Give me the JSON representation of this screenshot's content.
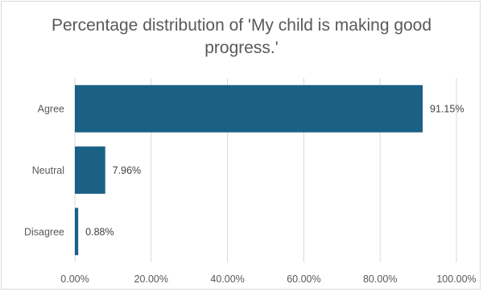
{
  "chart_data": {
    "type": "bar",
    "orientation": "horizontal",
    "title": "Percentage distribution of 'My child is making good progress.'",
    "categories": [
      "Agree",
      "Neutral",
      "Disagree"
    ],
    "values": [
      91.15,
      7.96,
      0.88
    ],
    "data_labels": [
      "91.15%",
      "7.96%",
      "0.88%"
    ],
    "xlim": [
      0,
      100
    ],
    "x_ticks": [
      0,
      20,
      40,
      60,
      80,
      100
    ],
    "x_tick_labels": [
      "0.00%",
      "20.00%",
      "40.00%",
      "60.00%",
      "80.00%",
      "100.00%"
    ],
    "xlabel": "",
    "ylabel": "",
    "grid": true,
    "legend": "none",
    "bar_color": "#1a6185",
    "grid_color": "#d9d9d9"
  }
}
